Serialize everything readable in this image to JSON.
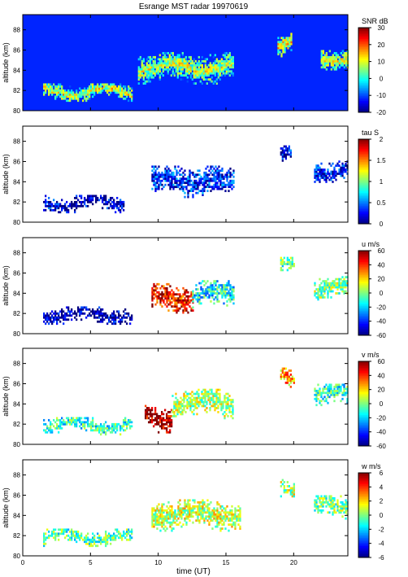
{
  "figure": {
    "title": "Esrange MST radar 19970619",
    "xlabel": "time (UT)",
    "x_ticks": [
      0,
      5,
      10,
      15,
      20
    ],
    "xlim": [
      0,
      24
    ]
  },
  "chart_data": [
    {
      "type": "heatmap",
      "ylabel": "altitude (km)",
      "ylim": [
        80,
        89.5
      ],
      "y_ticks": [
        80,
        82,
        84,
        86,
        88
      ],
      "colorbar": {
        "label": "SNR dB",
        "range": [
          -20,
          30
        ],
        "ticks": [
          30,
          20,
          10,
          0,
          -10,
          -20
        ]
      },
      "layers": [
        {
          "t0": 1.5,
          "t1": 8.0,
          "center": 81.8,
          "width": 0.9,
          "value": 10
        },
        {
          "t0": 8.5,
          "t1": 15.5,
          "center": 84.2,
          "width": 1.6,
          "value": 8
        },
        {
          "t0": 18.8,
          "t1": 19.8,
          "center": 86.5,
          "width": 1.2,
          "value": 12
        },
        {
          "t0": 22.0,
          "t1": 24.0,
          "center": 85.2,
          "width": 1.2,
          "value": 10
        }
      ]
    },
    {
      "type": "heatmap",
      "ylabel": "altitude (km)",
      "ylim": [
        80,
        89.5
      ],
      "y_ticks": [
        80,
        82,
        84,
        86,
        88
      ],
      "colorbar": {
        "label": "tau S",
        "range": [
          0,
          2
        ],
        "ticks": [
          2,
          1.5,
          1,
          0.5,
          0
        ]
      },
      "layers": [
        {
          "t0": 1.5,
          "t1": 7.5,
          "center": 81.8,
          "width": 0.9,
          "value": 0.15
        },
        {
          "t0": 9.5,
          "t1": 15.5,
          "center": 84.0,
          "width": 1.6,
          "value": 0.3
        },
        {
          "t0": 19.0,
          "t1": 19.8,
          "center": 86.6,
          "width": 1.0,
          "value": 0.2
        },
        {
          "t0": 21.5,
          "t1": 24.0,
          "center": 85.0,
          "width": 1.1,
          "value": 0.25
        }
      ]
    },
    {
      "type": "heatmap",
      "ylabel": "altitude (km)",
      "ylim": [
        80,
        89.5
      ],
      "y_ticks": [
        80,
        82,
        84,
        86,
        88
      ],
      "colorbar": {
        "label": "u m/s",
        "range": [
          -60,
          60
        ],
        "ticks": [
          60,
          40,
          20,
          0,
          -20,
          -40,
          -60
        ]
      },
      "layers": [
        {
          "t0": 1.5,
          "t1": 8.0,
          "center": 81.8,
          "width": 0.9,
          "value": -55
        },
        {
          "t0": 9.5,
          "t1": 12.5,
          "center": 83.5,
          "width": 1.5,
          "value": 45
        },
        {
          "t0": 12.5,
          "t1": 15.5,
          "center": 83.8,
          "width": 1.5,
          "value": -15
        },
        {
          "t0": 19.0,
          "t1": 20.0,
          "center": 86.6,
          "width": 1.0,
          "value": -5
        },
        {
          "t0": 21.5,
          "t1": 24.0,
          "center": 84.5,
          "width": 1.2,
          "value": 0
        }
      ]
    },
    {
      "type": "heatmap",
      "ylabel": "altitude (km)",
      "ylim": [
        80,
        89.5
      ],
      "y_ticks": [
        80,
        82,
        84,
        86,
        88
      ],
      "colorbar": {
        "label": "v m/s",
        "range": [
          -60,
          60
        ],
        "ticks": [
          60,
          40,
          20,
          0,
          -20,
          -40,
          -60
        ]
      },
      "layers": [
        {
          "t0": 1.5,
          "t1": 8.0,
          "center": 81.8,
          "width": 0.9,
          "value": -10
        },
        {
          "t0": 9.0,
          "t1": 11.0,
          "center": 82.5,
          "width": 1.4,
          "value": 55
        },
        {
          "t0": 11.0,
          "t1": 15.5,
          "center": 84.0,
          "width": 1.5,
          "value": 5
        },
        {
          "t0": 19.0,
          "t1": 20.0,
          "center": 86.6,
          "width": 1.0,
          "value": 25
        },
        {
          "t0": 21.5,
          "t1": 24.0,
          "center": 84.8,
          "width": 1.2,
          "value": -10
        }
      ]
    },
    {
      "type": "heatmap",
      "ylabel": "altitude (km)",
      "ylim": [
        80,
        89.5
      ],
      "y_ticks": [
        80,
        82,
        84,
        86,
        88
      ],
      "colorbar": {
        "label": "w m/s",
        "range": [
          -6,
          6
        ],
        "ticks": [
          6,
          4,
          2,
          0,
          -2,
          -4,
          -6
        ]
      },
      "layers": [
        {
          "t0": 1.5,
          "t1": 8.0,
          "center": 81.8,
          "width": 0.9,
          "value": -0.5
        },
        {
          "t0": 9.5,
          "t1": 16.0,
          "center": 84.0,
          "width": 1.6,
          "value": 0.8
        },
        {
          "t0": 19.0,
          "t1": 20.0,
          "center": 86.8,
          "width": 1.0,
          "value": 0.5
        },
        {
          "t0": 21.5,
          "t1": 24.0,
          "center": 84.8,
          "width": 1.2,
          "value": 0
        }
      ]
    }
  ]
}
